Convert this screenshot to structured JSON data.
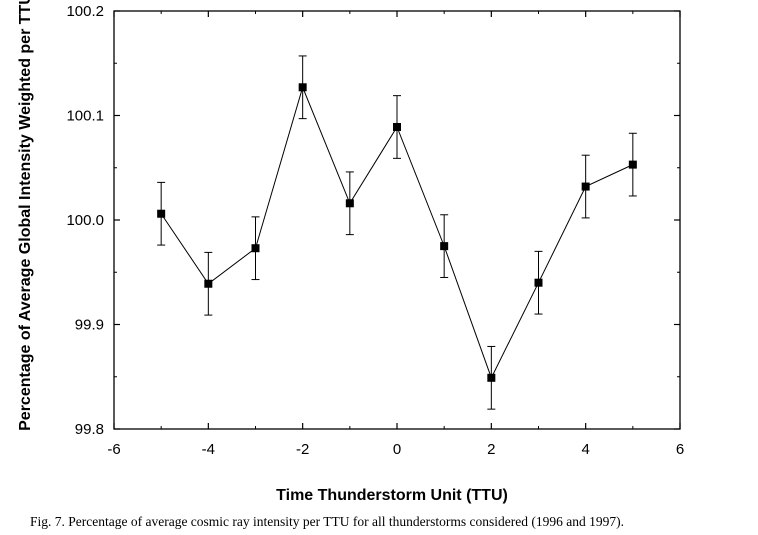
{
  "chart_data": {
    "type": "scatter",
    "xlabel": "Time Thunderstorm Unit (TTU)",
    "ylabel": "Percentage of Average Global Intensity Weighted per TTU",
    "xlim": [
      -6,
      6
    ],
    "ylim": [
      99.8,
      100.2
    ],
    "x_ticks": [
      -6,
      -4,
      -2,
      0,
      2,
      4,
      6
    ],
    "y_ticks": [
      99.8,
      99.9,
      100.0,
      100.1,
      100.2
    ],
    "x_tick_labels": [
      "-6",
      "-4",
      "-2",
      "0",
      "2",
      "4",
      "6"
    ],
    "y_tick_labels": [
      "99.8",
      "99.9",
      "100.0",
      "100.1",
      "100.2"
    ],
    "grid": false,
    "legend": "none",
    "connected": true,
    "marker": "square",
    "series": [
      {
        "x": [
          -5,
          -4,
          -3,
          -2,
          -1,
          0,
          1,
          2,
          3,
          4,
          5
        ],
        "y": [
          100.006,
          99.939,
          99.973,
          100.127,
          100.016,
          100.089,
          99.975,
          99.849,
          99.94,
          100.032,
          100.053
        ],
        "error": [
          0.03,
          0.03,
          0.03,
          0.03,
          0.03,
          0.03,
          0.03,
          0.03,
          0.03,
          0.03,
          0.03
        ]
      }
    ]
  },
  "caption": "Fig. 7. Percentage of average cosmic ray intensity per TTU for all thunderstorms considered (1996 and 1997)."
}
